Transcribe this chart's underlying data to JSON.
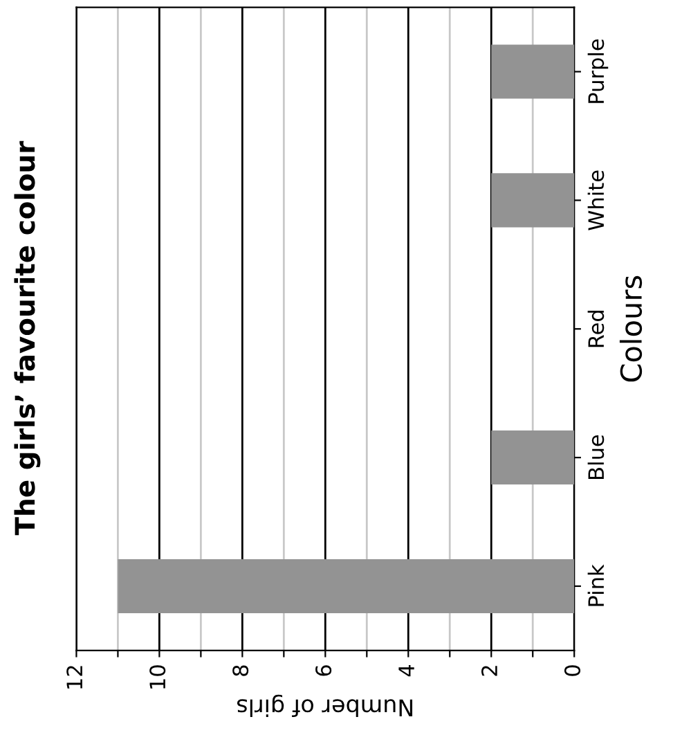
{
  "chart_data": {
    "type": "bar",
    "orientation": "horizontal",
    "title": "The girls’ favourite colour",
    "xlabel": "Number of girls",
    "ylabel": "Colours",
    "categories": [
      "Purple",
      "White",
      "Red",
      "Blue",
      "Pink"
    ],
    "values": [
      2,
      2,
      0,
      2,
      11
    ],
    "color": "#939393",
    "xlim": [
      12,
      0
    ],
    "xticks": [
      0,
      {
        "value": 1,
        "label": null
      },
      2,
      {
        "value": 3,
        "label": null
      },
      4,
      {
        "value": 5,
        "label": null
      },
      6,
      {
        "value": 7,
        "label": null
      },
      8,
      {
        "value": 9,
        "label": null
      },
      10,
      {
        "value": 11,
        "label": null
      },
      12
    ],
    "grid": "x",
    "legend": false
  }
}
